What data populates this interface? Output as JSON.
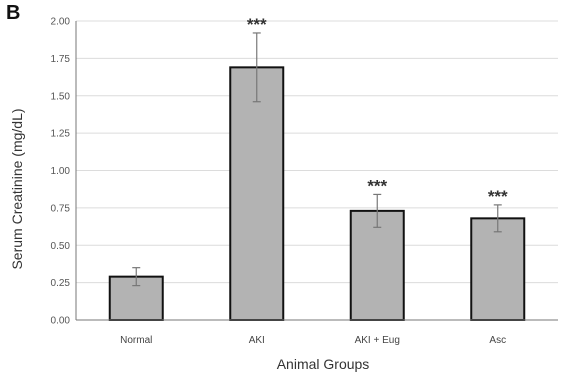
{
  "panel_label": "B",
  "chart_data": {
    "type": "bar",
    "categories": [
      "Normal",
      "AKI",
      "AKI + Eug",
      "Asc"
    ],
    "values": [
      0.29,
      1.69,
      0.73,
      0.68
    ],
    "errors": [
      0.06,
      0.23,
      0.11,
      0.09
    ],
    "annotations": [
      "",
      "***",
      "***",
      "***"
    ],
    "xlabel": "Animal Groups",
    "ylabel": "Serum Creatinine (mg/dL)",
    "ylim": [
      0,
      2.0
    ],
    "yticks": [
      "0.00",
      "0.25",
      "0.50",
      "0.75",
      "1.00",
      "1.25",
      "1.50",
      "1.75",
      "2.00"
    ],
    "grid": true,
    "bar_color": "#b3b3b3",
    "bar_edge_color": "#111111",
    "error_color": "#777777"
  }
}
